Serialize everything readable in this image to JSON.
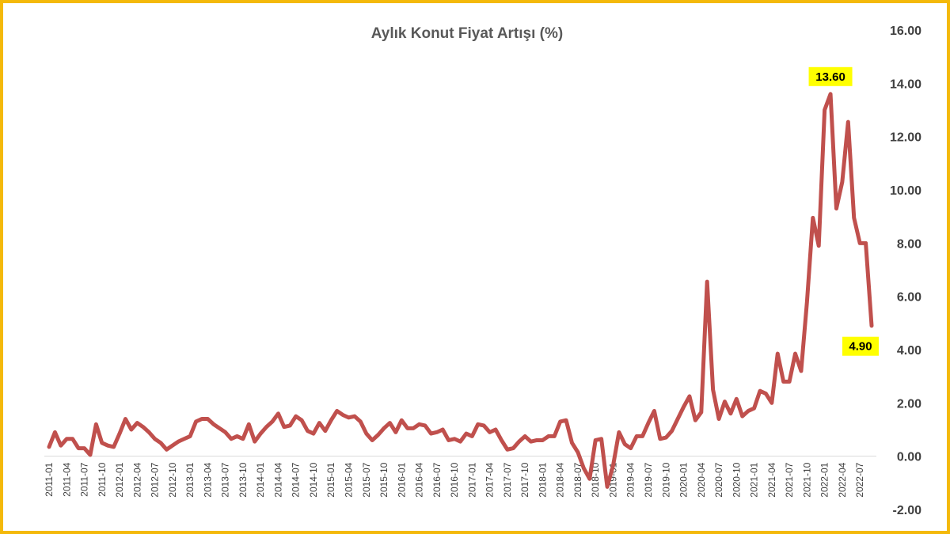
{
  "chart_data": {
    "type": "line",
    "title": "Aylık Konut Fiyat Artışı (%)",
    "xlabel": "",
    "ylabel": "",
    "ylim": [
      -2,
      16
    ],
    "y_ticks": [
      "16.00",
      "14.00",
      "12.00",
      "10.00",
      "8.00",
      "6.00",
      "4.00",
      "2.00",
      "0.00",
      "-2.00"
    ],
    "x_tick_labels": [
      "2011-01",
      "2011-04",
      "2011-07",
      "2011-10",
      "2012-01",
      "2012-04",
      "2012-07",
      "2012-10",
      "2013-01",
      "2013-04",
      "2013-07",
      "2013-10",
      "2014-01",
      "2014-04",
      "2014-07",
      "2014-10",
      "2015-01",
      "2015-04",
      "2015-07",
      "2015-10",
      "2016-01",
      "2016-04",
      "2016-07",
      "2016-10",
      "2017-01",
      "2017-04",
      "2017-07",
      "2017-10",
      "2018-01",
      "2018-04",
      "2018-07",
      "2018-10",
      "2019-01",
      "2019-04",
      "2019-07",
      "2019-10",
      "2020-01",
      "2020-04",
      "2020-07",
      "2020-10",
      "2021-01",
      "2021-04",
      "2021-07",
      "2021-10",
      "2022-01",
      "2022-04",
      "2022-07"
    ],
    "x_start": "2011-01",
    "x_end": "2022-09",
    "series": [
      {
        "values": [
          0.35,
          0.9,
          0.4,
          0.65,
          0.65,
          0.3,
          0.3,
          0.05,
          1.2,
          0.5,
          0.4,
          0.35,
          0.85,
          1.4,
          1.0,
          1.25,
          1.1,
          0.9,
          0.65,
          0.5,
          0.25,
          0.4,
          0.55,
          0.65,
          0.75,
          1.3,
          1.4,
          1.4,
          1.2,
          1.05,
          0.9,
          0.65,
          0.75,
          0.65,
          1.2,
          0.55,
          0.85,
          1.1,
          1.3,
          1.6,
          1.1,
          1.15,
          1.5,
          1.35,
          0.95,
          0.85,
          1.25,
          0.95,
          1.35,
          1.7,
          1.55,
          1.45,
          1.5,
          1.3,
          0.85,
          0.6,
          0.8,
          1.05,
          1.25,
          0.9,
          1.35,
          1.05,
          1.05,
          1.2,
          1.15,
          0.85,
          0.9,
          1.0,
          0.6,
          0.65,
          0.55,
          0.85,
          0.75,
          1.2,
          1.15,
          0.9,
          1.0,
          0.6,
          0.25,
          0.3,
          0.55,
          0.75,
          0.55,
          0.6,
          0.6,
          0.75,
          0.75,
          1.3,
          1.35,
          0.5,
          0.15,
          -0.45,
          -0.85,
          0.6,
          0.65,
          -1.15,
          -0.35,
          0.9,
          0.45,
          0.3,
          0.75,
          0.75,
          1.25,
          1.7,
          0.65,
          0.7,
          0.95,
          1.4,
          1.85,
          2.25,
          1.35,
          1.65,
          6.55,
          2.5,
          1.4,
          2.05,
          1.6,
          2.15,
          1.5,
          1.7,
          1.8,
          2.45,
          2.35,
          2.0,
          3.85,
          2.8,
          2.8,
          3.85,
          3.2,
          5.8,
          8.95,
          7.9,
          13.0,
          13.6,
          9.3,
          10.3,
          12.55,
          8.95,
          8.0,
          8.0,
          4.9
        ]
      }
    ],
    "annotations": [
      {
        "label": "13.60",
        "x": "2022-02",
        "y": 13.6
      },
      {
        "label": "4.90",
        "x": "2022-09",
        "y": 4.9
      }
    ],
    "line_color": "#c0504d",
    "highlight_color": "#ffff00",
    "grid": false,
    "legend": "none"
  }
}
